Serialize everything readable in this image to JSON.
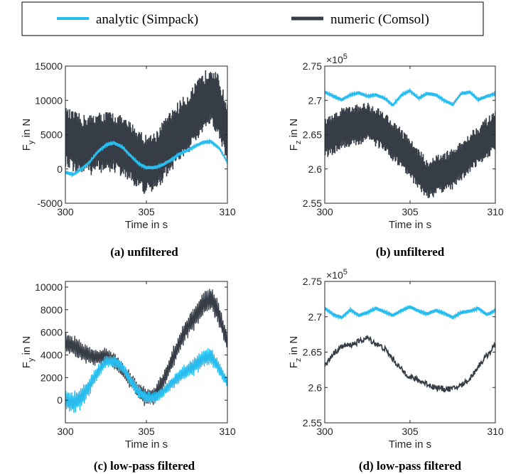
{
  "legend": {
    "items": [
      {
        "label": "analytic (Simpack)",
        "color": "#29BDEF"
      },
      {
        "label": "numeric (Comsol)",
        "color": "#363D46"
      }
    ]
  },
  "chart_data": [
    {
      "type": "line",
      "caption": "(a) unfiltered",
      "xlabel": "Time in s",
      "ylabel_main": "F",
      "ylabel_sub": "y",
      "ylabel_rest": " in N",
      "xlim": [
        300,
        310
      ],
      "ylim": [
        -5000,
        15000
      ],
      "xticks": [
        300,
        305,
        310
      ],
      "yticks": [
        -5000,
        0,
        5000,
        10000,
        15000
      ],
      "ytick_labels": [
        "-5000",
        "0",
        "5000",
        "10000",
        "15000"
      ],
      "exponent": "",
      "series": [
        {
          "name": "analytic (Simpack)",
          "color": "#29BDEF",
          "style": "thin",
          "x": [
            300,
            300.5,
            301,
            301.5,
            302,
            302.5,
            303,
            303.5,
            304,
            304.5,
            305,
            305.5,
            306,
            306.5,
            307,
            307.5,
            308,
            308.5,
            309,
            309.5,
            310
          ],
          "y": [
            -500,
            -800,
            0,
            1000,
            2500,
            3500,
            3800,
            3200,
            2000,
            800,
            200,
            200,
            600,
            1300,
            2100,
            2700,
            3300,
            3900,
            4000,
            3000,
            1000
          ]
        },
        {
          "name": "numeric (Comsol)",
          "color": "#363D46",
          "style": "band",
          "x": [
            300,
            300.5,
            301,
            301.5,
            302,
            302.5,
            303,
            303.5,
            304,
            304.5,
            305,
            305.5,
            306,
            306.5,
            307,
            307.5,
            308,
            308.5,
            309,
            309.5,
            310
          ],
          "y": [
            4500,
            4000,
            3500,
            3500,
            3800,
            4000,
            3900,
            3200,
            2500,
            1500,
            500,
            1000,
            2500,
            4000,
            5500,
            6500,
            8000,
            9500,
            11000,
            9000,
            5000
          ],
          "amp": [
            4500,
            4500,
            4500,
            4500,
            4500,
            4500,
            4500,
            4500,
            4500,
            4500,
            4500,
            4500,
            4500,
            4500,
            4500,
            4500,
            4500,
            4500,
            4500,
            4500,
            4500
          ]
        }
      ]
    },
    {
      "type": "line",
      "caption": "(b) unfiltered",
      "xlabel": "Time in s",
      "ylabel_main": "F",
      "ylabel_sub": "z",
      "ylabel_rest": " in N",
      "xlim": [
        300,
        310
      ],
      "ylim": [
        2.55,
        2.75
      ],
      "xticks": [
        300,
        305,
        310
      ],
      "yticks": [
        2.55,
        2.6,
        2.65,
        2.7,
        2.75
      ],
      "ytick_labels": [
        "2.55",
        "2.6",
        "2.65",
        "2.7",
        "2.75"
      ],
      "exponent": "×10",
      "exponent_power": "5",
      "series": [
        {
          "name": "analytic (Simpack)",
          "color": "#29BDEF",
          "style": "thin",
          "x": [
            300,
            300.5,
            301,
            301.5,
            302,
            302.5,
            303,
            303.5,
            304,
            304.5,
            305,
            305.5,
            306,
            306.5,
            307,
            307.5,
            308,
            308.5,
            309,
            309.5,
            310
          ],
          "y": [
            2.712,
            2.706,
            2.701,
            2.708,
            2.711,
            2.706,
            2.708,
            2.703,
            2.693,
            2.708,
            2.714,
            2.703,
            2.71,
            2.708,
            2.7,
            2.694,
            2.71,
            2.712,
            2.701,
            2.706,
            2.71
          ]
        },
        {
          "name": "numeric (Comsol)",
          "color": "#363D46",
          "style": "band",
          "x": [
            300,
            300.5,
            301,
            301.5,
            302,
            302.5,
            303,
            303.5,
            304,
            304.5,
            305,
            305.5,
            306,
            306.5,
            307,
            307.5,
            308,
            308.5,
            309,
            309.5,
            310
          ],
          "y": [
            2.645,
            2.65,
            2.66,
            2.662,
            2.665,
            2.668,
            2.662,
            2.655,
            2.64,
            2.63,
            2.615,
            2.6,
            2.585,
            2.59,
            2.595,
            2.6,
            2.61,
            2.625,
            2.635,
            2.645,
            2.655
          ],
          "amp": [
            0.03,
            0.03,
            0.03,
            0.03,
            0.03,
            0.03,
            0.03,
            0.03,
            0.03,
            0.03,
            0.03,
            0.03,
            0.03,
            0.03,
            0.03,
            0.03,
            0.03,
            0.03,
            0.03,
            0.03,
            0.03
          ]
        }
      ]
    },
    {
      "type": "line",
      "caption": "(c) low-pass filtered",
      "xlabel": "Time in s",
      "ylabel_main": "F",
      "ylabel_sub": "y",
      "ylabel_rest": " in N",
      "xlim": [
        300,
        310
      ],
      "ylim": [
        -2000,
        10500
      ],
      "xticks": [
        300,
        305,
        310
      ],
      "yticks": [
        0,
        2000,
        4000,
        6000,
        8000,
        10000
      ],
      "ytick_labels": [
        "0",
        "2000",
        "4000",
        "6000",
        "8000",
        "10000"
      ],
      "exponent": "",
      "series": [
        {
          "name": "analytic (Simpack)",
          "color": "#29BDEF",
          "style": "osc",
          "x": [
            300,
            300.5,
            301,
            301.5,
            302,
            302.5,
            303,
            303.5,
            304,
            304.5,
            305,
            305.5,
            306,
            306.5,
            307,
            307.5,
            308,
            308.5,
            309,
            309.5,
            310
          ],
          "y": [
            0,
            -300,
            300,
            1300,
            2500,
            3400,
            3500,
            2900,
            1800,
            800,
            200,
            200,
            700,
            1400,
            2100,
            2600,
            3100,
            3700,
            3900,
            2800,
            1500
          ],
          "amp": [
            1000,
            1100,
            1100,
            900,
            700,
            600,
            600,
            600,
            600,
            600,
            600,
            600,
            600,
            600,
            700,
            800,
            900,
            900,
            800,
            700,
            600
          ]
        },
        {
          "name": "numeric (Comsol)",
          "color": "#363D46",
          "style": "osc",
          "x": [
            300,
            300.5,
            301,
            301.5,
            302,
            302.5,
            303,
            303.5,
            304,
            304.5,
            305,
            305.5,
            306,
            306.5,
            307,
            307.5,
            308,
            308.5,
            309,
            309.5,
            310
          ],
          "y": [
            5000,
            4800,
            4300,
            3900,
            3800,
            3900,
            3500,
            2700,
            1800,
            800,
            200,
            400,
            1600,
            3200,
            5000,
            6400,
            7400,
            8500,
            9000,
            7500,
            5000
          ],
          "amp": [
            1000,
            1000,
            1000,
            900,
            800,
            800,
            800,
            800,
            800,
            800,
            900,
            900,
            900,
            1000,
            1100,
            1100,
            1200,
            1300,
            1300,
            1200,
            1000
          ]
        }
      ]
    },
    {
      "type": "line",
      "caption": "(d) low-pass filtered",
      "xlabel": "Time in s",
      "ylabel_main": "F",
      "ylabel_sub": "z",
      "ylabel_rest": " in N",
      "xlim": [
        300,
        310
      ],
      "ylim": [
        2.55,
        2.75
      ],
      "xticks": [
        300,
        305,
        310
      ],
      "yticks": [
        2.55,
        2.6,
        2.65,
        2.7,
        2.75
      ],
      "ytick_labels": [
        "2.55",
        "2.6",
        "2.65",
        "2.7",
        "2.75"
      ],
      "exponent": "×10",
      "exponent_power": "5",
      "series": [
        {
          "name": "analytic (Simpack)",
          "color": "#29BDEF",
          "style": "thin",
          "x": [
            300,
            300.5,
            301,
            301.5,
            302,
            302.5,
            303,
            303.5,
            304,
            304.5,
            305,
            305.5,
            306,
            306.5,
            307,
            307.5,
            308,
            308.5,
            309,
            309.5,
            310
          ],
          "y": [
            2.712,
            2.703,
            2.699,
            2.71,
            2.702,
            2.706,
            2.712,
            2.707,
            2.702,
            2.709,
            2.714,
            2.708,
            2.704,
            2.709,
            2.705,
            2.699,
            2.706,
            2.708,
            2.712,
            2.703,
            2.709
          ]
        },
        {
          "name": "numeric (Comsol)",
          "color": "#363D46",
          "style": "filt",
          "x": [
            300,
            300.5,
            301,
            301.5,
            302,
            302.5,
            303,
            303.5,
            304,
            304.5,
            305,
            305.5,
            306,
            306.5,
            307,
            307.5,
            308,
            308.5,
            309,
            309.5,
            310
          ],
          "y": [
            2.63,
            2.648,
            2.658,
            2.66,
            2.665,
            2.67,
            2.662,
            2.655,
            2.64,
            2.625,
            2.615,
            2.61,
            2.605,
            2.6,
            2.598,
            2.598,
            2.603,
            2.612,
            2.63,
            2.645,
            2.66
          ],
          "amp": [
            0.004,
            0.004,
            0.004,
            0.004,
            0.004,
            0.004,
            0.004,
            0.004,
            0.004,
            0.004,
            0.004,
            0.004,
            0.004,
            0.004,
            0.004,
            0.004,
            0.004,
            0.004,
            0.004,
            0.004,
            0.004
          ]
        }
      ]
    }
  ]
}
